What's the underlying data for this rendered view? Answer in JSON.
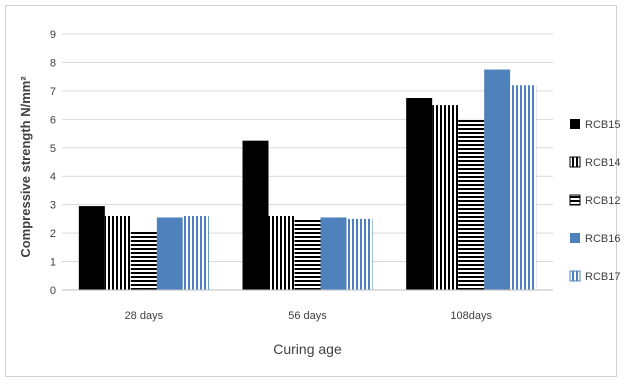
{
  "chart_data": {
    "type": "bar",
    "title": "",
    "xlabel": "Curing age",
    "ylabel": "Compressive strength N/mm²",
    "ylim": [
      0,
      9
    ],
    "yticks": [
      0,
      1,
      2,
      3,
      4,
      5,
      6,
      7,
      8,
      9
    ],
    "grid": true,
    "legend_position": "right",
    "categories": [
      "28 days",
      "56 days",
      "108days"
    ],
    "series": [
      {
        "name": "RCB15",
        "values": [
          2.95,
          5.25,
          6.75
        ],
        "color": "#000000",
        "pattern": "solid"
      },
      {
        "name": "RCB14",
        "values": [
          2.6,
          2.6,
          6.5
        ],
        "color": "#000000",
        "pattern": "vertical-stripes"
      },
      {
        "name": "RCB12",
        "values": [
          2.1,
          2.5,
          6.0
        ],
        "color": "#000000",
        "pattern": "horizontal-stripes"
      },
      {
        "name": "RCB16",
        "values": [
          2.55,
          2.55,
          7.75
        ],
        "color": "#4f81bd",
        "pattern": "solid"
      },
      {
        "name": "RCB17",
        "values": [
          2.6,
          2.5,
          7.2
        ],
        "color": "#4f81bd",
        "pattern": "vertical-stripes"
      }
    ]
  }
}
